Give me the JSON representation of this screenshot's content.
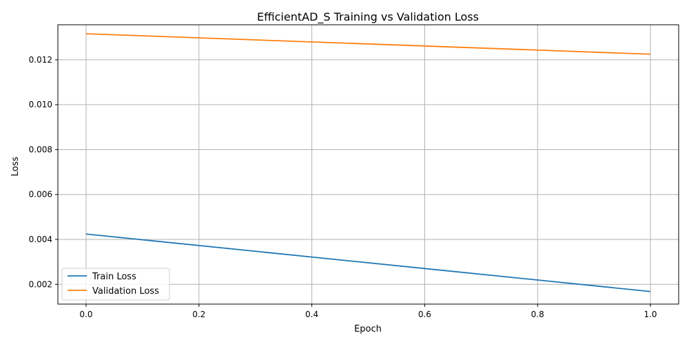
{
  "chart_data": {
    "type": "line",
    "title": "EfficientAD_S Training vs Validation Loss",
    "xlabel": "Epoch",
    "ylabel": "Loss",
    "xlim": [
      -0.05,
      1.05
    ],
    "ylim": [
      0.00112,
      0.01356
    ],
    "x_ticks": [
      0.0,
      0.2,
      0.4,
      0.6,
      0.8,
      1.0
    ],
    "x_tick_labels": [
      "0.0",
      "0.2",
      "0.4",
      "0.6",
      "0.8",
      "1.0"
    ],
    "y_ticks": [
      0.002,
      0.004,
      0.006,
      0.008,
      0.01,
      0.012
    ],
    "y_tick_labels": [
      "0.002",
      "0.004",
      "0.006",
      "0.008",
      "0.010",
      "0.012"
    ],
    "grid": true,
    "legend_position": "lower-left",
    "series": [
      {
        "name": "Train Loss",
        "color": "#1f77b4",
        "x": [
          0,
          1
        ],
        "y": [
          0.00424,
          0.00168
        ]
      },
      {
        "name": "Validation Loss",
        "color": "#ff7f0e",
        "x": [
          0,
          1
        ],
        "y": [
          0.01316,
          0.01225
        ]
      }
    ]
  }
}
